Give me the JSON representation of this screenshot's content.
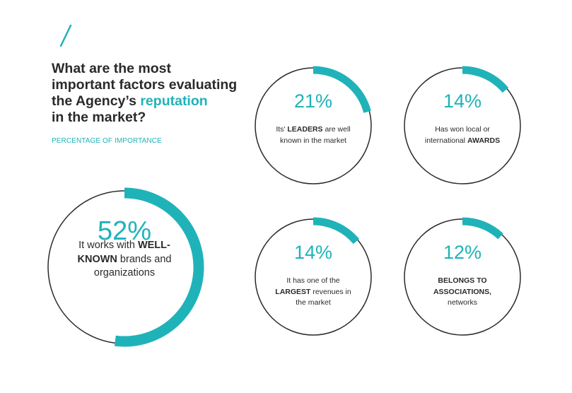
{
  "title": {
    "line1": "What are the most",
    "line2": "important factors evaluating",
    "line3_prefix": "the Agency’s ",
    "line3_highlight": "reputation",
    "line4": "in the market?"
  },
  "subtitle": "PERCENTAGE OF IMPORTANCE",
  "colors": {
    "accent": "#1fb3b9",
    "ring": "#2a2a2a",
    "text": "#2a2a2a"
  },
  "chart_data": {
    "type": "radial-progress",
    "title": "What are the most important factors evaluating the Agency’s reputation in the market?",
    "subtitle": "PERCENTAGE OF IMPORTANCE",
    "items": [
      {
        "id": "well-known",
        "value": 52,
        "label": "52%",
        "desc_pre": "It works with",
        "desc_bold": "WELL-KNOWN",
        "desc_post": "brands and organizations"
      },
      {
        "id": "leaders",
        "value": 21,
        "label": "21%",
        "desc_pre": "Its'",
        "desc_bold": "LEADERS",
        "desc_post": "are well known in the market"
      },
      {
        "id": "awards",
        "value": 14,
        "label": "14%",
        "desc_pre": "Has won local or international",
        "desc_bold": "AWARDS",
        "desc_post": ""
      },
      {
        "id": "revenues",
        "value": 14,
        "label": "14%",
        "desc_pre": "It has one of the",
        "desc_bold": "LARGEST",
        "desc_post": "revenues in the market"
      },
      {
        "id": "associations",
        "value": 12,
        "label": "12%",
        "desc_pre": "",
        "desc_bold": "BELONGS TO ASSOCIATIONS,",
        "desc_post": "networks"
      }
    ]
  }
}
